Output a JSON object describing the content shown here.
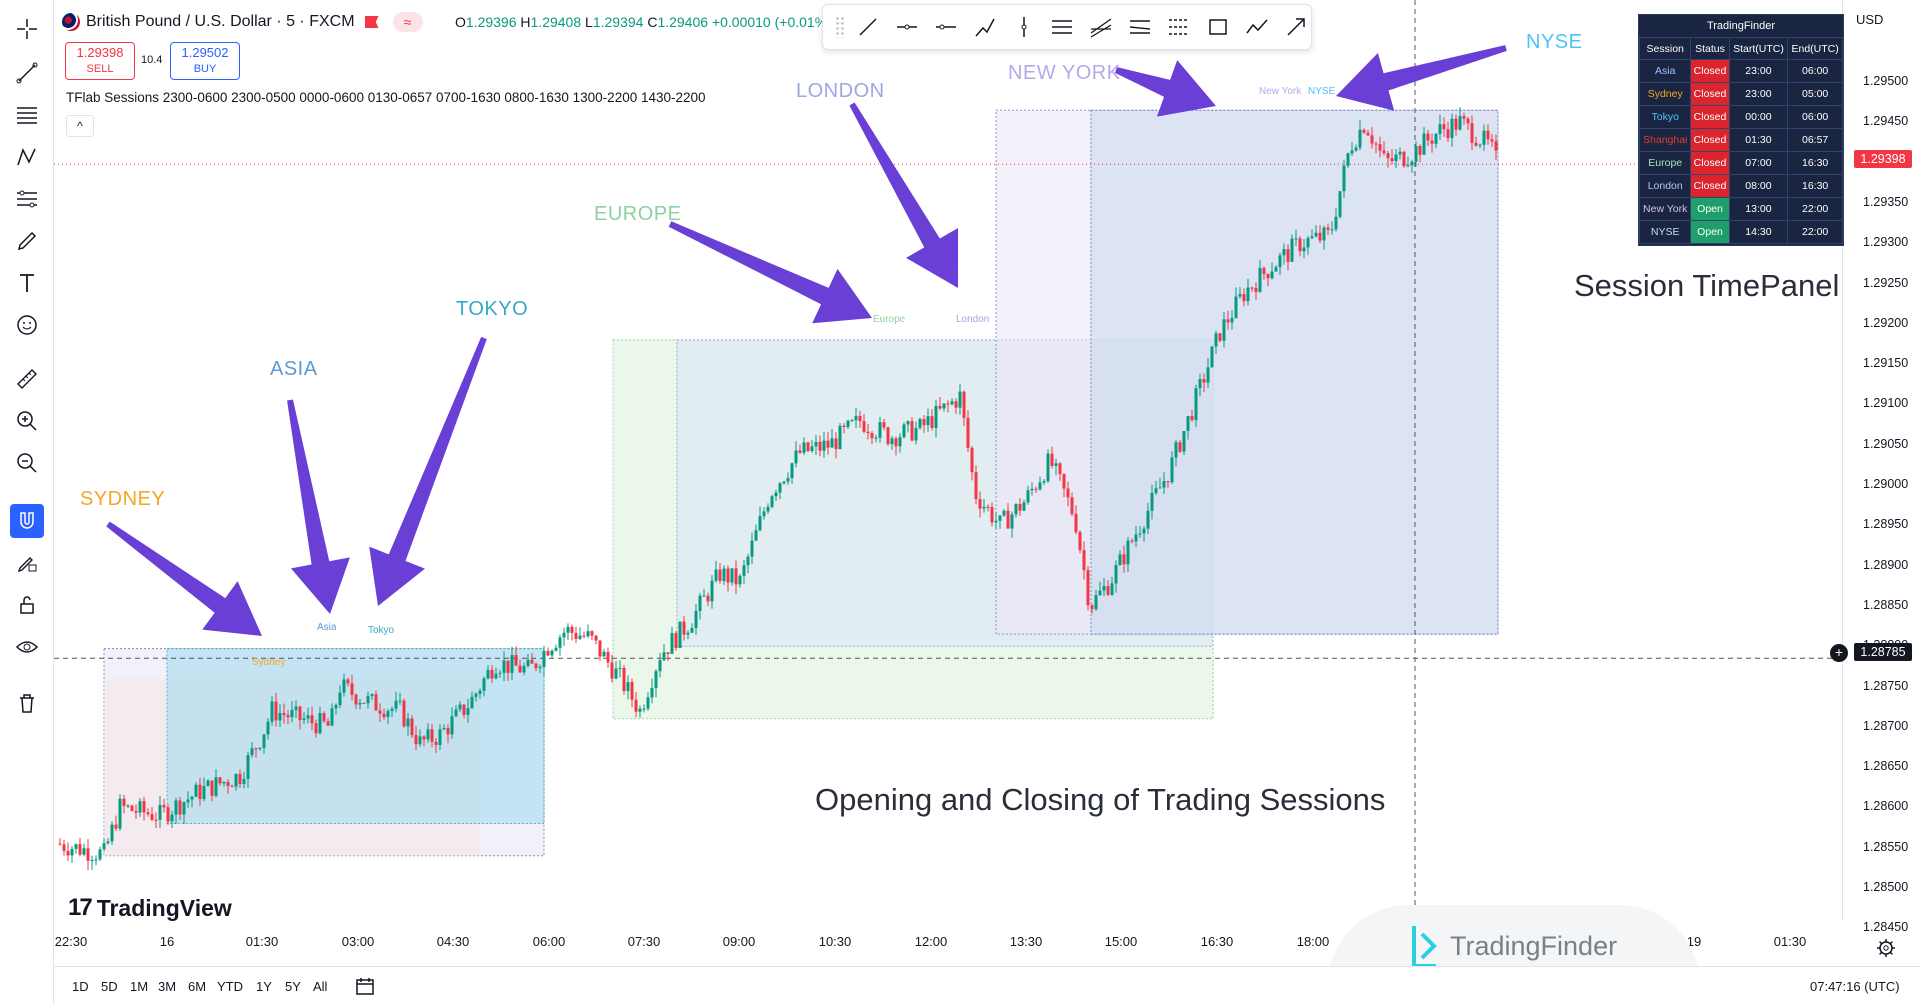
{
  "header": {
    "symbol_title": "British Pound / U.S. Dollar · 5 · FXCM",
    "pill_icon": "≈",
    "ohlc_o_label": "O",
    "ohlc_o": "1.29396",
    "ohlc_h_label": "H",
    "ohlc_h": "1.29408",
    "ohlc_l_label": "L",
    "ohlc_l": "1.29394",
    "ohlc_c_label": "C",
    "ohlc_c": "1.29406",
    "ohlc_change": "+0.00010 (+0.01%)"
  },
  "trade": {
    "sell_price": "1.29398",
    "sell_label": "SELL",
    "spread": "10.4",
    "buy_price": "1.29502",
    "buy_label": "BUY"
  },
  "indicator": {
    "legend": "TFlab Sessions 2300-0600 2300-0500 0000-0600 0130-0657 0700-1630 0800-1630 1300-2200 1430-2200",
    "collapse_icon": "^"
  },
  "left_toolbar": {
    "icons": [
      "crosshair-icon",
      "trend-line-icon",
      "fib-icon",
      "pattern-icon",
      "projection-icon",
      "brush-icon",
      "text-icon",
      "emoji-icon",
      "ruler-icon",
      "zoom-in-icon",
      "zoom-out-icon",
      "magnet-icon",
      "lock-drawing-icon",
      "lock-icon",
      "eye-icon",
      "trash-icon"
    ]
  },
  "draw_toolbar": {
    "icons": [
      "trend-line-icon",
      "horizontal-line-icon",
      "horizontal-ray-icon",
      "path-icon",
      "vertical-line-icon",
      "parallel-channel-icon",
      "regression-icon",
      "flat-top-icon",
      "disjoint-channel-icon",
      "rectangle-icon",
      "polyline-icon",
      "arrow-icon"
    ]
  },
  "price_axis": {
    "currency": "USD",
    "labels": [
      "1.29500",
      "1.29450",
      "1.29400",
      "1.29350",
      "1.29300",
      "1.29250",
      "1.29200",
      "1.29150",
      "1.29100",
      "1.29050",
      "1.29000",
      "1.28950",
      "1.28900",
      "1.28850",
      "1.28800",
      "1.28750",
      "1.28700",
      "1.28650",
      "1.28600",
      "1.28550",
      "1.28500",
      "1.28450"
    ],
    "current_price": "1.29398",
    "crosshair_price": "1.28785"
  },
  "time_axis": {
    "labels": [
      "22:30",
      "16",
      "01:30",
      "03:00",
      "04:30",
      "06:00",
      "07:30",
      "09:00",
      "10:30",
      "12:00",
      "13:30",
      "15:00",
      "16:30",
      "18:00",
      "19",
      "01:30"
    ]
  },
  "bottom_bar": {
    "ranges": [
      "1D",
      "5D",
      "1M",
      "3M",
      "6M",
      "YTD",
      "1Y",
      "5Y",
      "All"
    ],
    "clock": "07:47:16 (UTC)"
  },
  "annotations": {
    "sydney": "SYDNEY",
    "asia": "ASIA",
    "tokyo": "TOKYO",
    "europe": "EUROPE",
    "london": "LONDON",
    "new_york": "NEW YORK",
    "nyse": "NYSE",
    "session_panel_caption": "Session TimePanel",
    "chart_caption": "Opening and Closing of Trading Sessions",
    "chart_labels": {
      "sydney": "Sydney",
      "asia": "Asia",
      "tokyo": "Tokyo",
      "europe": "Europe",
      "london": "London",
      "new_york": "New York",
      "nyse": "NYSE"
    }
  },
  "session_panel": {
    "title": "TradingFinder",
    "headers": [
      "Session",
      "Status",
      "Start(UTC)",
      "End(UTC)"
    ],
    "rows": [
      {
        "session": "Asia",
        "status": "Closed",
        "start": "23:00",
        "end": "06:00",
        "color": "#9ec3ff"
      },
      {
        "session": "Sydney",
        "status": "Closed",
        "start": "23:00",
        "end": "05:00",
        "color": "#f5a623"
      },
      {
        "session": "Tokyo",
        "status": "Closed",
        "start": "00:00",
        "end": "06:00",
        "color": "#4fc3f7"
      },
      {
        "session": "Shanghai",
        "status": "Closed",
        "start": "01:30",
        "end": "06:57",
        "color": "#e53935"
      },
      {
        "session": "Europe",
        "status": "Closed",
        "start": "07:00",
        "end": "16:30",
        "color": "#a5e4b8"
      },
      {
        "session": "London",
        "status": "Closed",
        "start": "08:00",
        "end": "16:30",
        "color": "#b3c7f7"
      },
      {
        "session": "New York",
        "status": "Open",
        "start": "13:00",
        "end": "22:00",
        "color": "#d1c4e9"
      },
      {
        "session": "NYSE",
        "status": "Open",
        "start": "14:30",
        "end": "22:00",
        "color": "#bbdefb"
      }
    ]
  },
  "logos": {
    "tradingview_mark": "17",
    "tradingview": "TradingView",
    "tradingfinder": "TradingFinder"
  },
  "colors": {
    "up": "#089981",
    "down": "#f23645",
    "arrow": "#6a3fd6",
    "sydney": "#f5a623",
    "asia": "#5b9bd5",
    "tokyo": "#33a9c9",
    "europe": "#8fd19e",
    "london": "#9aa8e0",
    "new_york": "#b7a6e8",
    "nyse": "#4fc3f7"
  }
}
